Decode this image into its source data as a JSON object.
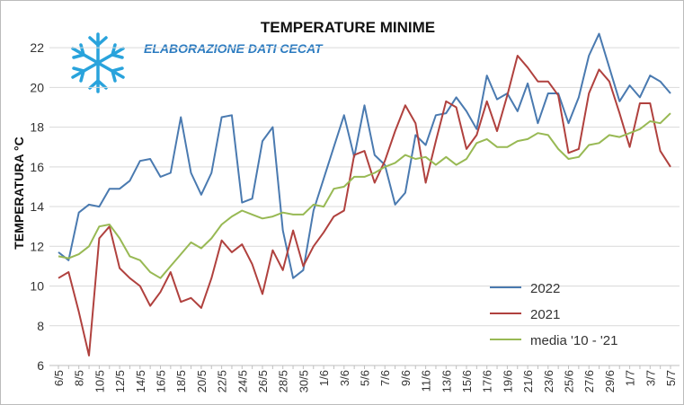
{
  "chart_data": {
    "type": "line",
    "title": "TEMPERATURE  MINIME",
    "subtitle": "ELABORAZIONE DATI CECAT",
    "y_label": "TEMPERATURA °C",
    "categories": [
      "6/5",
      null,
      "8/5",
      null,
      "10/5",
      null,
      "12/5",
      null,
      "14/5",
      null,
      "16/5",
      null,
      "18/5",
      null,
      "20/5",
      null,
      "22/5",
      null,
      "24/5",
      null,
      "26/5",
      null,
      "28/5",
      null,
      "30/5",
      null,
      "1/6",
      null,
      "3/6",
      null,
      "5/6",
      null,
      "7/6",
      null,
      "9/6",
      null,
      "11/6",
      null,
      "13/6",
      null,
      "15/6",
      null,
      "17/6",
      null,
      "19/6",
      null,
      "21/6",
      null,
      "23/6",
      null,
      "25/6",
      null,
      "27/6",
      null,
      "29/6",
      null,
      "1/7",
      null,
      "3/7",
      null,
      "5/7"
    ],
    "series": [
      {
        "name": "2022",
        "color": "#4a7ab0",
        "values": [
          11.7,
          11.3,
          13.7,
          14.1,
          14.0,
          14.9,
          14.9,
          15.3,
          16.3,
          16.4,
          15.5,
          15.7,
          18.5,
          15.7,
          14.6,
          15.7,
          18.5,
          18.6,
          14.2,
          14.4,
          17.3,
          18.0,
          12.8,
          10.4,
          10.8,
          13.8,
          15.4,
          17.0,
          18.6,
          16.5,
          19.1,
          16.6,
          16.1,
          14.1,
          14.7,
          17.6,
          17.1,
          18.6,
          18.7,
          19.5,
          18.8,
          17.9,
          20.6,
          19.4,
          19.7,
          18.8,
          20.2,
          18.2,
          19.7,
          19.7,
          18.2,
          19.5,
          21.6,
          22.7,
          21.0,
          19.3,
          20.1,
          19.5,
          20.6,
          20.3,
          19.7
        ]
      },
      {
        "name": "2021",
        "color": "#b0413e",
        "values": [
          10.4,
          10.7,
          8.7,
          6.5,
          12.4,
          13.0,
          10.9,
          10.4,
          10.0,
          9.0,
          9.7,
          10.7,
          9.2,
          9.4,
          8.9,
          10.4,
          12.3,
          11.7,
          12.1,
          11.1,
          9.6,
          11.8,
          10.8,
          12.8,
          11.0,
          12.0,
          12.7,
          13.5,
          13.8,
          16.6,
          16.8,
          15.2,
          16.3,
          17.8,
          19.1,
          18.2,
          15.2,
          17.3,
          19.3,
          19.0,
          16.9,
          17.6,
          19.3,
          17.8,
          19.6,
          21.6,
          21.0,
          20.3,
          20.3,
          19.6,
          16.7,
          16.9,
          19.7,
          20.9,
          20.3,
          18.7,
          17.0,
          19.2,
          19.2,
          16.8,
          16.0
        ]
      },
      {
        "name": "media '10 - '21",
        "color": "#98b954",
        "values": [
          11.5,
          11.4,
          11.6,
          12.0,
          13.0,
          13.1,
          12.4,
          11.5,
          11.3,
          10.7,
          10.4,
          11.0,
          11.6,
          12.2,
          11.9,
          12.4,
          13.1,
          13.5,
          13.8,
          13.6,
          13.4,
          13.5,
          13.7,
          13.6,
          13.6,
          14.1,
          14.0,
          14.9,
          15.0,
          15.5,
          15.5,
          15.7,
          16.0,
          16.2,
          16.6,
          16.4,
          16.5,
          16.1,
          16.5,
          16.1,
          16.4,
          17.2,
          17.4,
          17.0,
          17.0,
          17.3,
          17.4,
          17.7,
          17.6,
          16.9,
          16.4,
          16.5,
          17.1,
          17.2,
          17.6,
          17.5,
          17.7,
          17.9,
          18.3,
          18.2,
          18.7
        ]
      }
    ],
    "ylim": [
      6,
      23
    ],
    "yticks": [
      6,
      8,
      10,
      12,
      14,
      16,
      18,
      20,
      22
    ],
    "grid": true,
    "legend": "lower right"
  }
}
